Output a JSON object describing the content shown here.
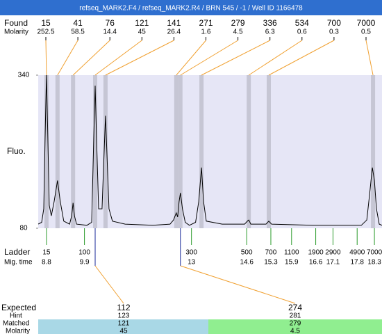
{
  "title": "refseq_MARK2.F4 / refseq_MARK2.R4 / BRN 545 / -1 / Well ID 1166478",
  "found": {
    "label": "Found",
    "molarity_label": "Molarity",
    "sizes": [
      15,
      41,
      76,
      121,
      141,
      271,
      279,
      336,
      534,
      700,
      7000
    ],
    "molarity": [
      252.5,
      58.5,
      14.4,
      45,
      26.4,
      1.6,
      4.5,
      6.3,
      0.6,
      0.3,
      0.5
    ],
    "times": [
      8.8,
      9.12,
      9.57,
      10.21,
      10.51,
      12.56,
      12.68,
      13.29,
      14.66,
      15.24,
      18.26
    ]
  },
  "chart_data": {
    "type": "line",
    "y_label": "Fluo.",
    "xlim": [
      8.56,
      18.52
    ],
    "ylim": [
      80,
      340
    ],
    "yticks": [
      340,
      80
    ],
    "color": "#000000",
    "x": [
      8.56,
      8.66,
      8.72,
      8.76,
      8.8,
      8.84,
      8.88,
      8.94,
      9.02,
      9.12,
      9.2,
      9.3,
      9.47,
      9.53,
      9.57,
      9.61,
      9.67,
      9.97,
      10.11,
      10.17,
      10.21,
      10.25,
      10.31,
      10.41,
      10.47,
      10.51,
      10.55,
      10.61,
      10.71,
      11.08,
      11.88,
      12.38,
      12.48,
      12.56,
      12.6,
      12.64,
      12.68,
      12.74,
      12.82,
      12.94,
      13.12,
      13.21,
      13.29,
      13.35,
      13.43,
      13.89,
      14.54,
      14.62,
      14.66,
      14.72,
      15.16,
      15.24,
      15.32,
      16.51,
      17.92,
      18.08,
      18.16,
      18.24,
      18.3,
      18.36,
      18.44,
      18.52
    ],
    "values": [
      87,
      90,
      113,
      233,
      340,
      233,
      119,
      101,
      125,
      161,
      125,
      92,
      87,
      101,
      123,
      101,
      87,
      85,
      90,
      233,
      322,
      233,
      113,
      113,
      209,
      271,
      209,
      113,
      92,
      87,
      85,
      87,
      94,
      106,
      99,
      125,
      140,
      113,
      90,
      85,
      90,
      125,
      183,
      125,
      92,
      87,
      87,
      92,
      94,
      87,
      87,
      92,
      87,
      85,
      85,
      94,
      137,
      183,
      161,
      113,
      87,
      85
    ]
  },
  "ladder": {
    "label": "Ladder",
    "time_label": "Mig. time",
    "sizes": [
      15,
      100,
      300,
      500,
      700,
      1100,
      1900,
      2900,
      4900,
      7000
    ],
    "times": [
      8.8,
      9.9,
      13,
      14.6,
      15.3,
      15.9,
      16.6,
      17.1,
      17.8,
      18.3
    ]
  },
  "expected": {
    "label": "Expected",
    "hint_label": "Hint",
    "matched_label": "Matched",
    "molarity_label": "Molarity",
    "columns": [
      {
        "expected": 112,
        "hint": 123,
        "matched": 121,
        "molarity": 45
      },
      {
        "expected": 274,
        "hint": 281,
        "matched": 279,
        "molarity": 4.5
      }
    ]
  }
}
